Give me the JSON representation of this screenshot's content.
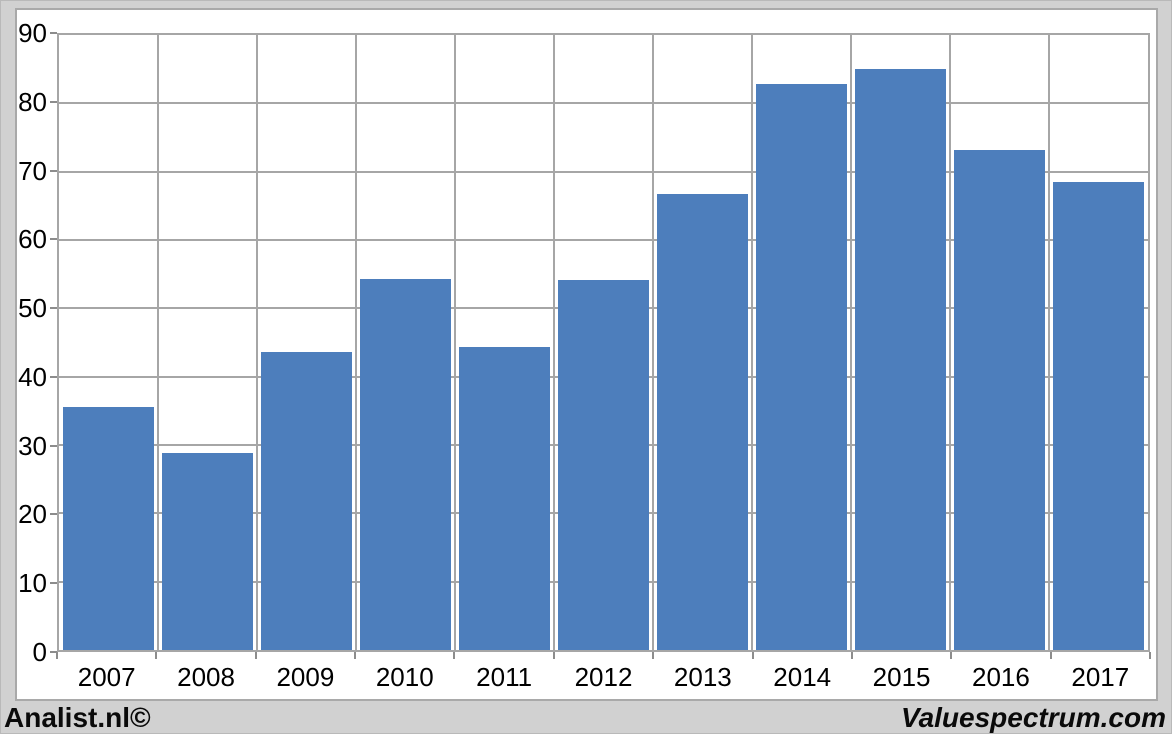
{
  "chart_data": {
    "type": "bar",
    "title": "",
    "xlabel": "",
    "ylabel": "",
    "categories": [
      "2007",
      "2008",
      "2009",
      "2010",
      "2011",
      "2012",
      "2013",
      "2014",
      "2015",
      "2016",
      "2017"
    ],
    "values": [
      35.6,
      28.8,
      43.6,
      54.3,
      44.4,
      54.1,
      66.7,
      82.8,
      85.0,
      73.1,
      68.5
    ],
    "ylim": [
      0,
      90
    ],
    "ytick_step": 10,
    "yticks": [
      0,
      10,
      20,
      30,
      40,
      50,
      60,
      70,
      80,
      90
    ],
    "grid": "horizontal and vertical major gridlines",
    "legend": "none",
    "data_labels": "none"
  },
  "footer": {
    "left_brand": "Analist.nl©",
    "right_brand": "Valuespectrum.com"
  },
  "colors": {
    "bar": "#4d7ebc",
    "grid": "#a6a6a6",
    "background": "#d1d1d1",
    "panel_background": "#ffffff",
    "text": "#000000"
  }
}
